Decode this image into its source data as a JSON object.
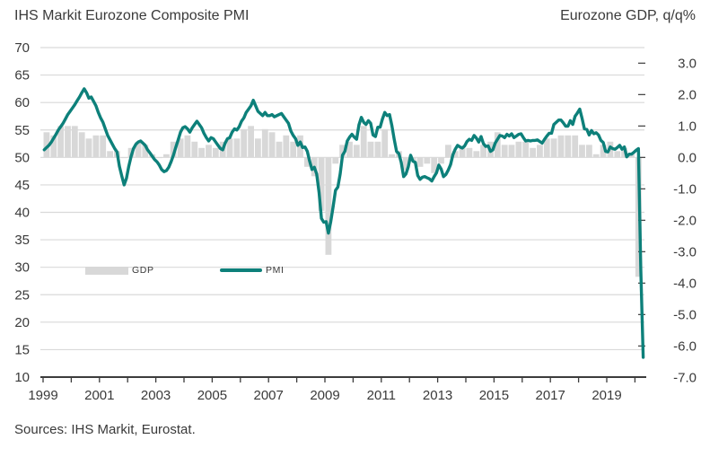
{
  "header": {
    "left_title": "IHS Markit Eurozone Composite PMI",
    "right_title": "Eurozone GDP, q/q%"
  },
  "footer": {
    "source": "Sources: IHS Markit, Eurostat."
  },
  "legend": {
    "gdp_label": "GDP",
    "pmi_label": "PMI"
  },
  "colors": {
    "pmi_line": "#0d807a",
    "gdp_bar": "#d8d8d8",
    "grid": "#d9d9d9",
    "axis": "#3c3c3c",
    "text": "#3a3a3a",
    "background": "#ffffff"
  },
  "chart_data": {
    "type": "line+bar",
    "title": "IHS Markit Eurozone Composite PMI",
    "right_axis_title": "Eurozone GDP, q/q%",
    "grid": "horizontal",
    "legend_position": "inside lower-left",
    "x_axis": {
      "tick_years": [
        1999,
        2000,
        2001,
        2002,
        2003,
        2004,
        2005,
        2006,
        2007,
        2008,
        2009,
        2010,
        2011,
        2012,
        2013,
        2014,
        2015,
        2016,
        2017,
        2018,
        2019,
        2020
      ],
      "label_years": [
        "1999",
        "2001",
        "2003",
        "2005",
        "2007",
        "2009",
        "2011",
        "2013",
        "2015",
        "2017",
        "2019"
      ]
    },
    "left_axis": {
      "series": "PMI",
      "min": 10,
      "max": 70,
      "tick_step": 5,
      "ticks": [
        "70",
        "65",
        "60",
        "55",
        "50",
        "45",
        "40",
        "35",
        "30",
        "25",
        "20",
        "15",
        "10"
      ]
    },
    "right_axis": {
      "series": "GDP",
      "min": -7.0,
      "max": 3.0,
      "tick_step": 1.0,
      "zero_aligned_with_left_value": 50,
      "ticks": [
        "3.0",
        "2.0",
        "1.0",
        "0.0",
        "-1.0",
        "-2.0",
        "-3.0",
        "-4.0",
        "-5.0",
        "-6.0",
        "-7.0"
      ]
    },
    "series": [
      {
        "name": "GDP",
        "type": "bar",
        "axis": "right",
        "frequency": "quarterly",
        "start": "1999Q1",
        "end": "2020Q1",
        "unit": "% q/q",
        "values": [
          0.8,
          0.7,
          1.0,
          1.0,
          1.0,
          0.8,
          0.6,
          0.7,
          0.7,
          0.2,
          0.2,
          0.0,
          0.3,
          0.5,
          0.4,
          0.1,
          0.0,
          0.1,
          0.5,
          0.6,
          0.7,
          0.5,
          0.3,
          0.4,
          0.3,
          0.5,
          0.6,
          0.6,
          0.9,
          1.0,
          0.6,
          0.9,
          0.8,
          0.5,
          0.7,
          0.5,
          0.7,
          -0.3,
          -0.6,
          -1.7,
          -3.1,
          -0.2,
          0.4,
          0.5,
          0.4,
          1.0,
          0.5,
          0.5,
          0.9,
          0.1,
          0.2,
          -0.4,
          -0.1,
          -0.3,
          -0.2,
          -0.5,
          -0.2,
          0.4,
          0.2,
          0.3,
          0.3,
          0.2,
          0.4,
          0.5,
          0.8,
          0.4,
          0.4,
          0.5,
          0.5,
          0.3,
          0.4,
          0.6,
          0.6,
          0.7,
          0.7,
          0.7,
          0.4,
          0.4,
          0.1,
          0.4,
          0.5,
          0.2,
          0.3,
          0.1,
          -3.8
        ]
      },
      {
        "name": "PMI",
        "type": "line",
        "axis": "left",
        "frequency": "monthly",
        "start": "1999-01",
        "end": "2020-04",
        "unit": "index",
        "values": [
          51.4,
          51.8,
          52.2,
          52.8,
          53.5,
          54.2,
          55.0,
          55.6,
          56.2,
          57.0,
          57.8,
          58.4,
          59.0,
          59.6,
          60.3,
          61.0,
          61.8,
          62.5,
          61.8,
          60.8,
          61.0,
          60.2,
          59.4,
          58.2,
          57.2,
          56.4,
          55.2,
          54.0,
          53.2,
          52.4,
          51.6,
          51.0,
          48.4,
          46.6,
          45.0,
          46.2,
          48.4,
          50.2,
          51.6,
          52.4,
          52.8,
          53.0,
          52.6,
          52.2,
          51.4,
          50.8,
          50.2,
          49.6,
          49.2,
          48.6,
          47.8,
          47.4,
          47.6,
          48.2,
          49.2,
          50.4,
          51.8,
          53.2,
          54.6,
          55.4,
          55.6,
          55.2,
          54.6,
          55.4,
          56.0,
          56.6,
          56.0,
          55.4,
          54.4,
          53.6,
          53.0,
          53.6,
          53.4,
          52.8,
          52.2,
          51.6,
          51.4,
          52.6,
          53.4,
          53.6,
          54.6,
          55.2,
          55.0,
          55.6,
          56.6,
          57.2,
          58.2,
          58.8,
          59.4,
          60.4,
          59.4,
          58.4,
          58.0,
          57.6,
          58.2,
          57.6,
          57.6,
          57.8,
          57.4,
          57.6,
          57.8,
          58.0,
          57.4,
          56.8,
          56.2,
          54.8,
          54.0,
          53.4,
          52.2,
          52.8,
          51.8,
          51.9,
          51.1,
          49.3,
          47.8,
          48.2,
          47.0,
          43.6,
          38.9,
          38.2,
          38.3,
          36.2,
          38.3,
          41.1,
          44.0,
          44.6,
          47.0,
          50.4,
          51.1,
          53.0,
          53.7,
          54.2,
          53.7,
          53.3,
          55.9,
          57.3,
          56.4,
          56.0,
          56.7,
          56.2,
          54.1,
          53.8,
          55.5,
          55.5,
          57.0,
          58.2,
          57.6,
          57.8,
          55.8,
          53.3,
          51.1,
          50.7,
          49.1,
          46.5,
          47.0,
          48.3,
          50.4,
          49.3,
          49.1,
          46.7,
          46.0,
          46.4,
          46.5,
          46.3,
          46.1,
          45.7,
          46.5,
          47.2,
          48.6,
          47.9,
          46.5,
          46.9,
          47.7,
          48.7,
          50.5,
          51.5,
          52.2,
          51.9,
          51.7,
          52.1,
          52.9,
          53.3,
          53.1,
          54.0,
          53.5,
          52.8,
          53.8,
          52.5,
          52.0,
          52.1,
          51.1,
          51.4,
          52.6,
          53.3,
          54.0,
          53.9,
          53.6,
          54.2,
          53.9,
          54.3,
          53.6,
          53.9,
          54.2,
          54.3,
          53.6,
          53.0,
          53.1,
          53.0,
          53.1,
          53.1,
          53.2,
          52.9,
          52.6,
          53.3,
          53.9,
          54.4,
          54.4,
          56.0,
          56.4,
          56.8,
          56.8,
          56.3,
          55.7,
          55.7,
          56.7,
          56.0,
          57.5,
          58.1,
          58.8,
          57.1,
          55.2,
          55.1,
          54.1,
          54.9,
          54.3,
          54.5,
          54.1,
          53.1,
          52.7,
          51.1,
          51.0,
          51.9,
          51.6,
          51.5,
          51.8,
          52.2,
          51.5,
          51.9,
          50.1,
          50.6,
          50.6,
          50.9,
          51.3,
          51.6,
          29.7,
          13.6
        ]
      }
    ]
  }
}
